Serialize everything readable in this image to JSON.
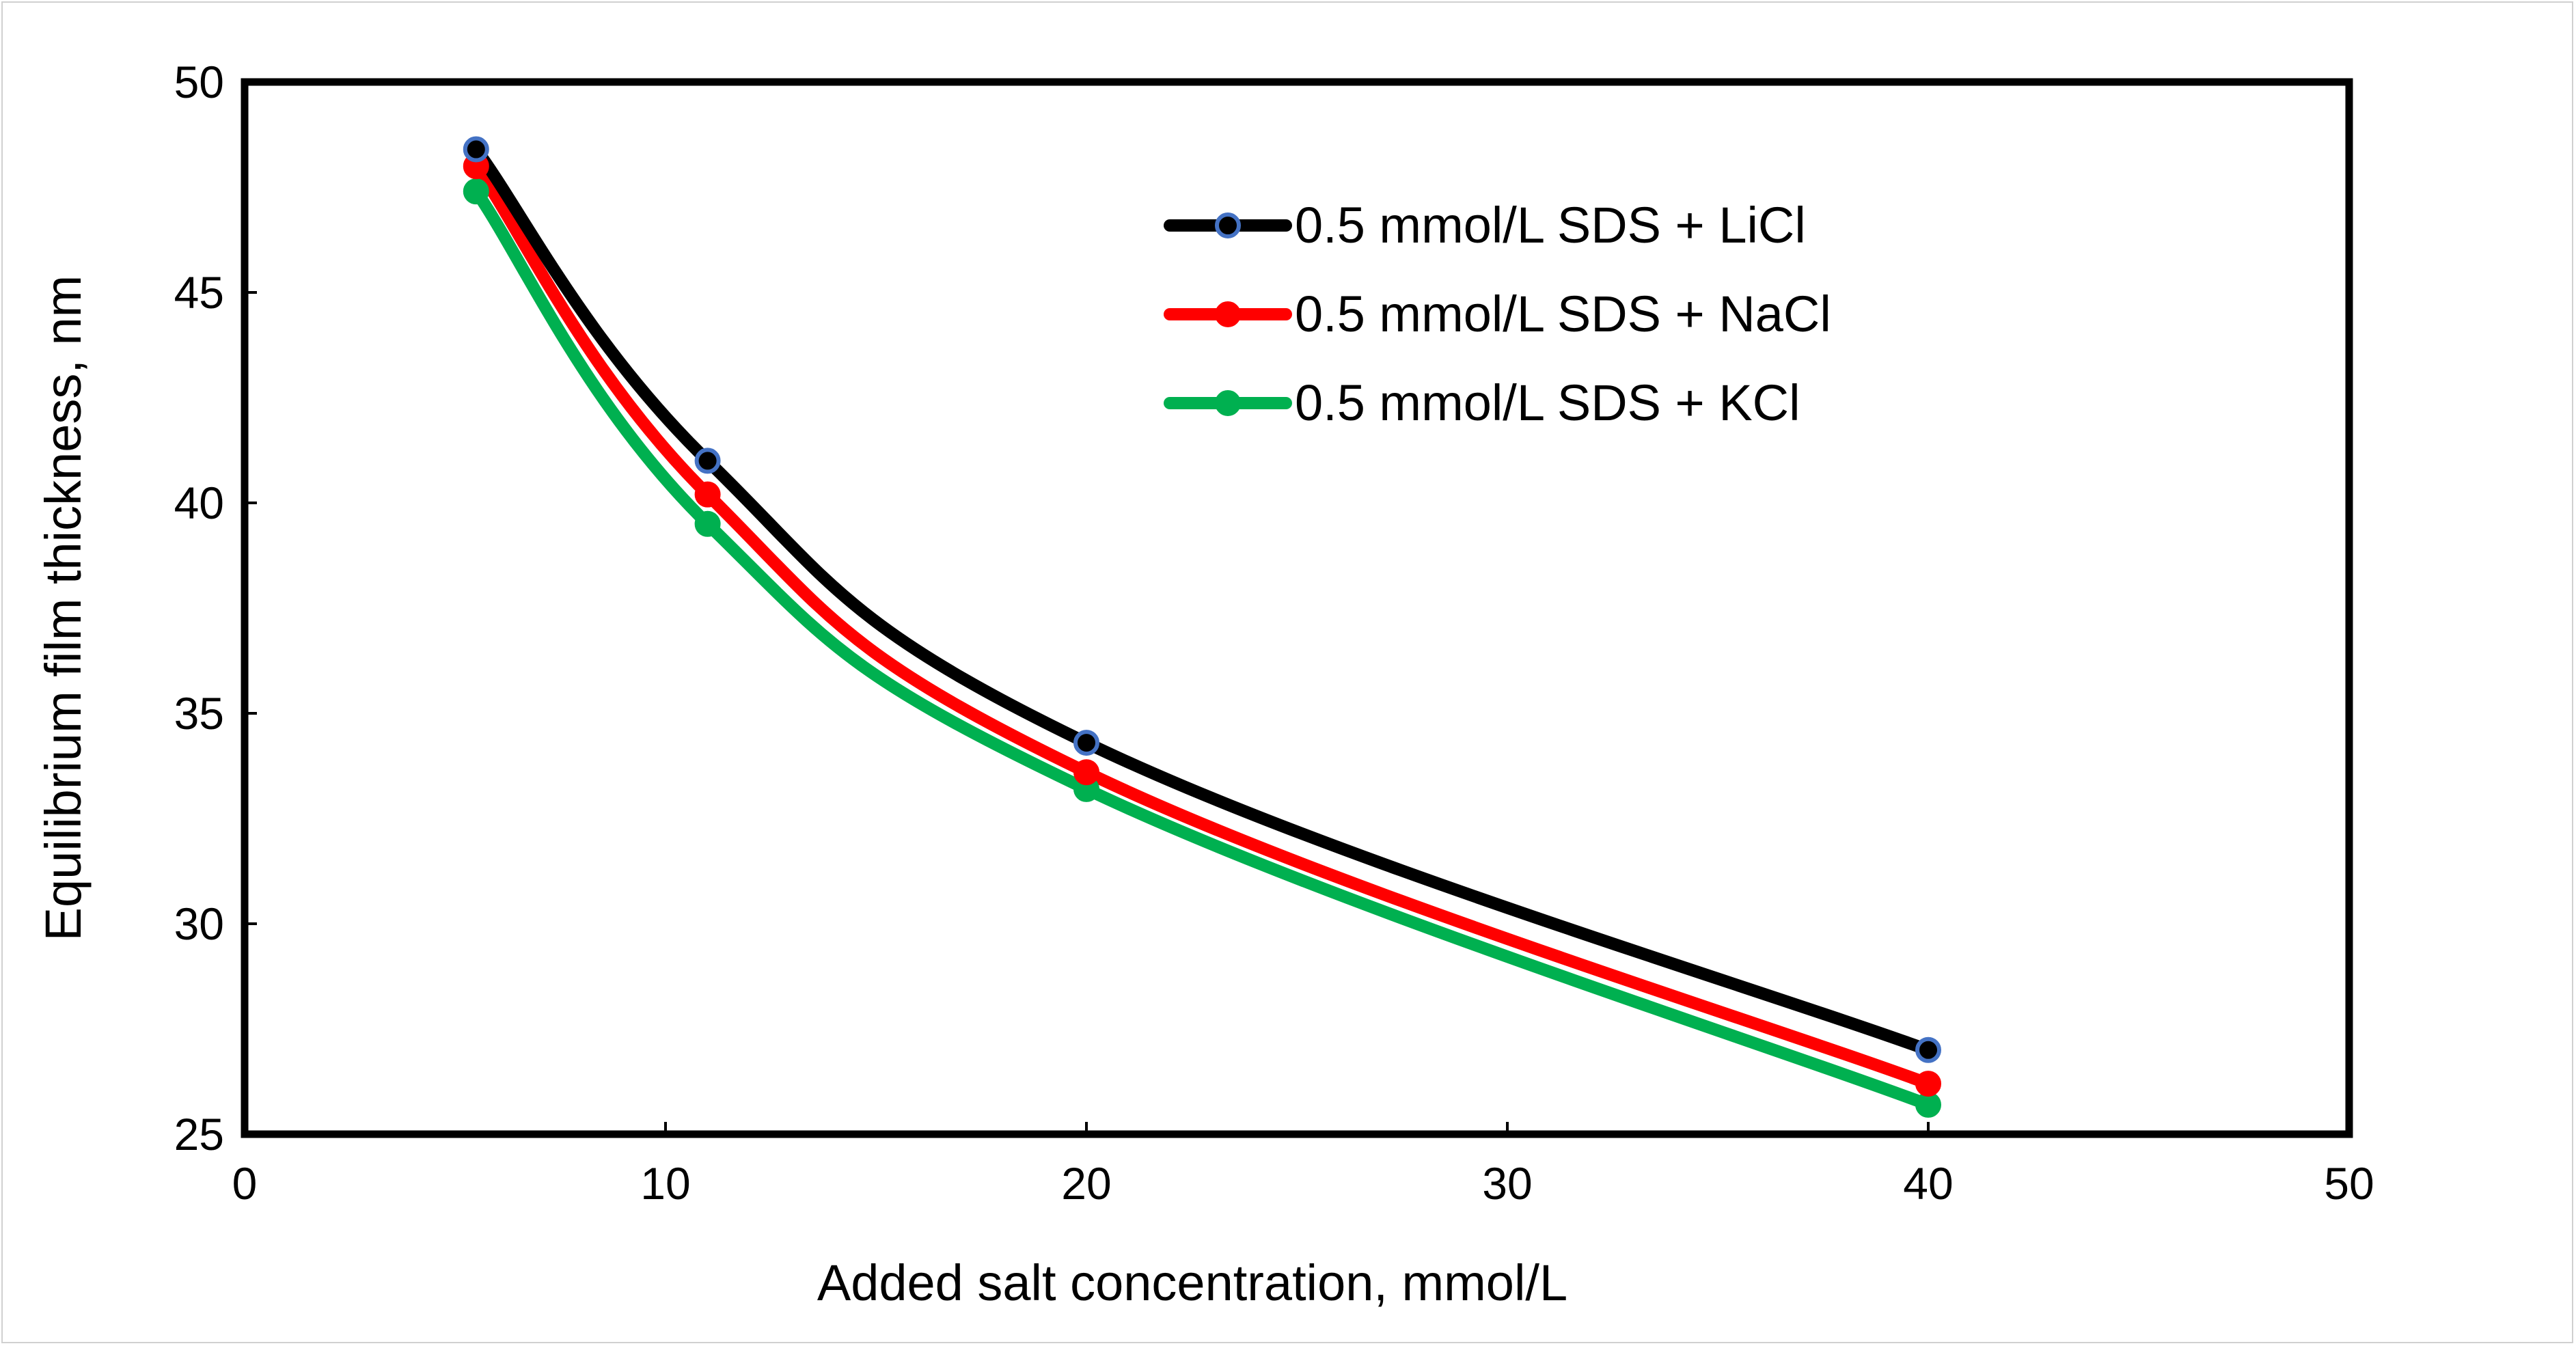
{
  "chart_data": {
    "type": "line",
    "title": "",
    "xlabel": "Added salt concentration, mmol/L",
    "ylabel": "Equilibrium film thickness, nm",
    "xlim": [
      0,
      50
    ],
    "ylim": [
      25,
      50
    ],
    "xticks": [
      0,
      10,
      20,
      30,
      40,
      50
    ],
    "yticks": [
      25,
      30,
      35,
      40,
      45,
      50
    ],
    "grid": false,
    "legend_position": "top-right",
    "series": [
      {
        "name": "0.5 mmol/L SDS + LiCl",
        "color": "#000000",
        "marker_fill": "#000000",
        "marker_edge": "#4472c4",
        "x": [
          5.5,
          11,
          20,
          40
        ],
        "y": [
          48.4,
          41.0,
          34.3,
          27.0
        ]
      },
      {
        "name": "0.5 mmol/L SDS + NaCl",
        "color": "#ff0000",
        "marker_fill": "#ff0000",
        "marker_edge": "#ff0000",
        "x": [
          5.5,
          11,
          20,
          40
        ],
        "y": [
          48.0,
          40.2,
          33.6,
          26.2
        ]
      },
      {
        "name": "0.5 mmol/L SDS + KCl",
        "color": "#00b050",
        "marker_fill": "#00b050",
        "marker_edge": "#00b050",
        "x": [
          5.5,
          11,
          20,
          40
        ],
        "y": [
          47.4,
          39.5,
          33.2,
          25.7
        ]
      }
    ]
  }
}
